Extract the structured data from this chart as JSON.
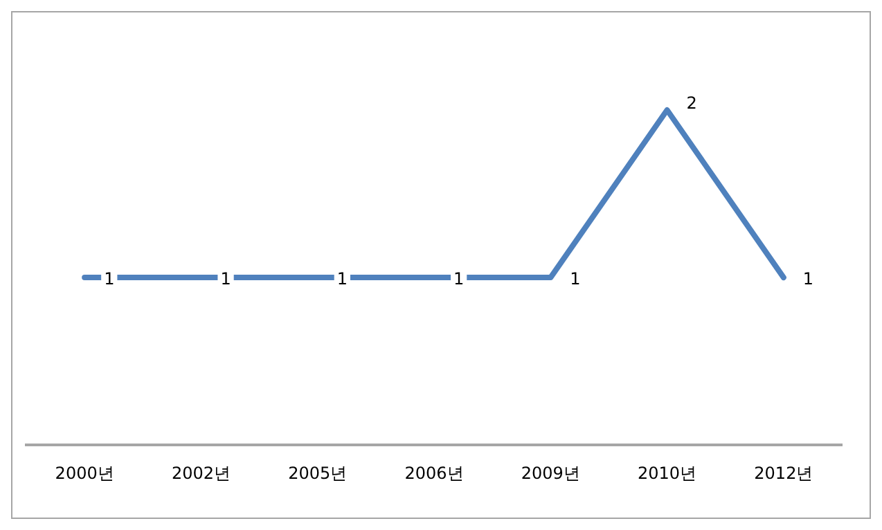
{
  "chart_data": {
    "type": "line",
    "categories": [
      "2000년",
      "2002년",
      "2005년",
      "2006년",
      "2009년",
      "2010년",
      "2012년"
    ],
    "series": [
      {
        "color": "#4f81bd",
        "values": [
          1,
          1,
          1,
          1,
          1,
          2,
          1
        ]
      }
    ],
    "data_labels": true,
    "grid": false,
    "legend": false,
    "marker": "none",
    "line_style": "solid",
    "tick_labels": "x"
  }
}
